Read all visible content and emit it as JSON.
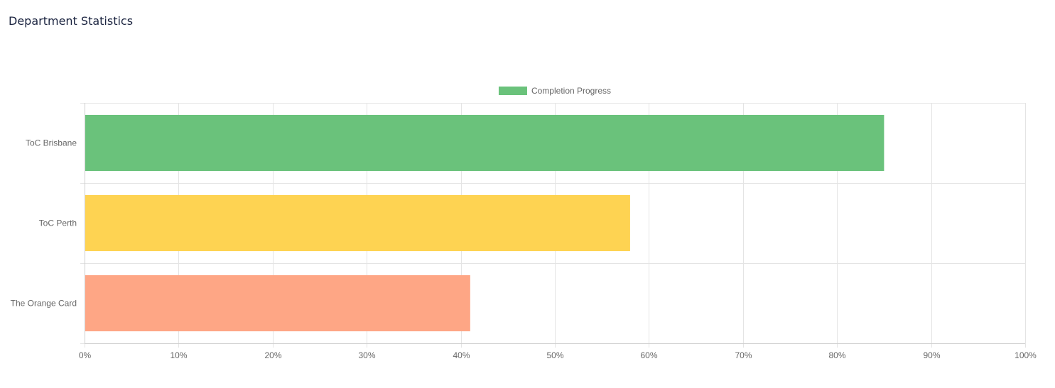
{
  "page": {
    "title": "Department Statistics"
  },
  "chart_data": {
    "type": "bar",
    "orientation": "horizontal",
    "categories": [
      "ToC Brisbane",
      "ToC Perth",
      "The Orange Card"
    ],
    "series": [
      {
        "name": "Completion Progress",
        "values": [
          85,
          58,
          41
        ],
        "colors": [
          "#6ac27b",
          "#fed352",
          "#fea685"
        ]
      }
    ],
    "xlim": [
      0,
      100
    ],
    "x_ticks": [
      "0%",
      "10%",
      "20%",
      "30%",
      "40%",
      "50%",
      "60%",
      "70%",
      "80%",
      "90%",
      "100%"
    ],
    "grid": true,
    "legend_position": "top"
  }
}
